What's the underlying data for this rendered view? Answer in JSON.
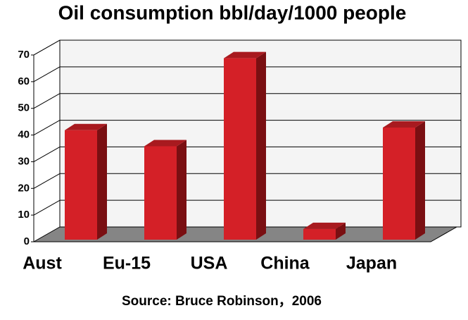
{
  "chart_data": {
    "type": "bar3d",
    "title": "Oil consumption  bbl/day/1000 people",
    "categories": [
      "Aust",
      "Eu-15",
      "USA",
      "China",
      "Japan"
    ],
    "values": [
      41,
      35,
      68,
      4,
      42
    ],
    "color": "#d42027",
    "ylim": [
      0,
      70
    ],
    "yticks": [
      0,
      10,
      20,
      30,
      40,
      50,
      60,
      70
    ],
    "grid": true,
    "source": "Source: Bruce Robinson，2006"
  }
}
